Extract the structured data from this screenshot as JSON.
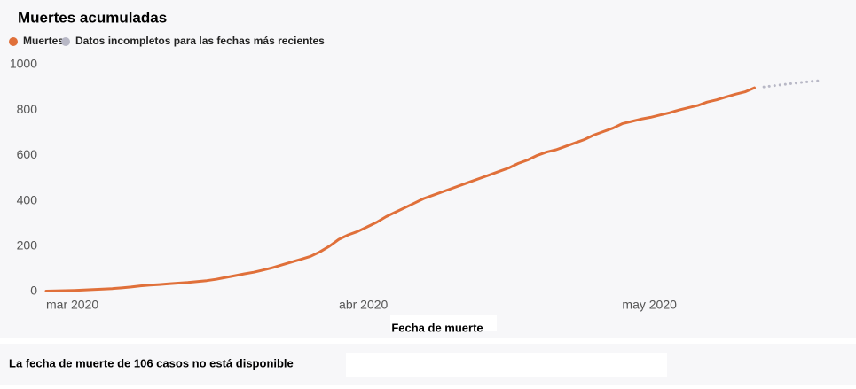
{
  "chart_data": {
    "type": "line",
    "title": "Muertes acumuladas",
    "x_label": "Fecha de muerte",
    "note": "La fecha de muerte de 106 casos no está disponible",
    "categories": [
      "mar 2020",
      null,
      null,
      null,
      null,
      null,
      null,
      null,
      null,
      null,
      null,
      null,
      null,
      null,
      null,
      null,
      null,
      null,
      null,
      null,
      null,
      null,
      null,
      null,
      null,
      null,
      null,
      null,
      null,
      null,
      null,
      "abr 2020",
      null,
      null,
      null,
      null,
      null,
      null,
      null,
      null,
      null,
      null,
      null,
      null,
      null,
      null,
      null,
      null,
      null,
      null,
      null,
      null,
      null,
      null,
      null,
      null,
      null,
      null,
      null,
      null,
      null,
      "may 2020",
      null,
      null,
      null,
      null,
      null,
      null,
      null,
      null,
      null,
      null,
      null,
      null,
      null,
      null,
      null,
      null,
      null,
      null,
      null,
      null,
      null
    ],
    "series": [
      {
        "name": "Muertes",
        "color": "#e0703a",
        "style": "solid",
        "values": [
          2,
          3,
          4,
          5,
          7,
          9,
          11,
          13,
          16,
          20,
          25,
          28,
          31,
          34,
          37,
          40,
          44,
          48,
          54,
          62,
          70,
          78,
          85,
          95,
          105,
          118,
          130,
          142,
          155,
          175,
          200,
          230,
          250,
          265,
          285,
          305,
          330,
          350,
          370,
          390,
          410,
          425,
          440,
          455,
          470,
          485,
          500,
          515,
          530,
          545,
          565,
          580,
          600,
          615,
          625,
          640,
          655,
          670,
          690,
          705,
          720,
          740,
          750,
          760,
          768,
          778,
          788,
          800,
          810,
          820,
          835,
          845,
          858,
          870,
          880,
          898,
          null,
          null,
          null,
          null,
          null,
          null,
          null
        ]
      },
      {
        "name": "Datos incompletos para las fechas más recientes",
        "color": "#b8b8c6",
        "style": "dotted",
        "values": [
          null,
          null,
          null,
          null,
          null,
          null,
          null,
          null,
          null,
          null,
          null,
          null,
          null,
          null,
          null,
          null,
          null,
          null,
          null,
          null,
          null,
          null,
          null,
          null,
          null,
          null,
          null,
          null,
          null,
          null,
          null,
          null,
          null,
          null,
          null,
          null,
          null,
          null,
          null,
          null,
          null,
          null,
          null,
          null,
          null,
          null,
          null,
          null,
          null,
          null,
          null,
          null,
          null,
          null,
          null,
          null,
          null,
          null,
          null,
          null,
          null,
          null,
          null,
          null,
          null,
          null,
          null,
          null,
          null,
          null,
          null,
          null,
          null,
          null,
          null,
          null,
          902,
          907,
          912,
          917,
          922,
          926,
          930
        ]
      }
    ],
    "ylim": [
      0,
      1000
    ],
    "yticks": [
      0,
      200,
      400,
      600,
      800,
      1000
    ],
    "grid": false
  }
}
